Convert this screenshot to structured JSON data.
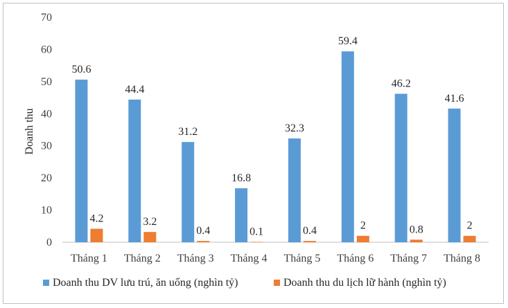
{
  "chart_data": {
    "type": "bar",
    "categories": [
      "Tháng 1",
      "Tháng 2",
      "Tháng 3",
      "Tháng 4",
      "Tháng 5",
      "Tháng 6",
      "Tháng 7",
      "Tháng 8"
    ],
    "series": [
      {
        "name": "Doanh thu DV lưu trú, ăn uống (nghìn tỷ)",
        "color": "#5b9bd5",
        "values": [
          50.6,
          44.4,
          31.2,
          16.8,
          32.3,
          59.4,
          46.2,
          41.6
        ],
        "labels": [
          "50.6",
          "44.4",
          "31.2",
          "16.8",
          "32.3",
          "59.4",
          "46.2",
          "41.6"
        ]
      },
      {
        "name": "Doanh thu du lịch lữ hành (nghìn tỷ)",
        "color": "#ed7d31",
        "values": [
          4.2,
          3.2,
          0.4,
          0.1,
          0.4,
          2,
          0.8,
          2
        ],
        "labels": [
          "4.2",
          "3.2",
          "0.4",
          "0.1",
          "0.4",
          "2",
          "0.8",
          "2"
        ]
      }
    ],
    "title": "",
    "xlabel": "",
    "ylabel": "Doanh thu",
    "ylim": [
      0,
      70
    ],
    "yticks": [
      "0",
      "10",
      "20",
      "30",
      "40",
      "50",
      "60",
      "70"
    ],
    "grid": false,
    "legend": "bottom"
  }
}
